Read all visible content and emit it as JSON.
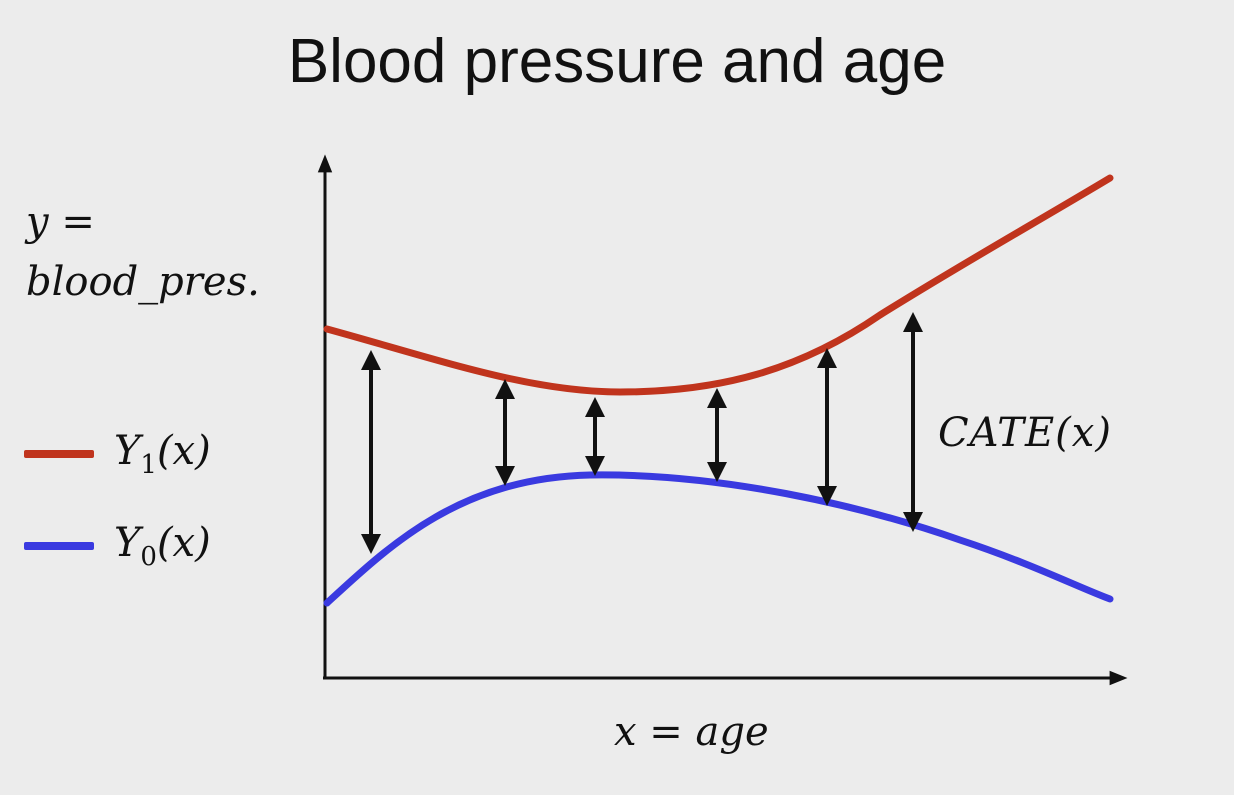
{
  "title": "Blood pressure and age",
  "y_axis": {
    "line1": "y =",
    "line2": "blood_pres."
  },
  "x_axis": {
    "label": "x = age"
  },
  "legend": [
    {
      "base": "Y",
      "sub": "1",
      "rest": "(x)",
      "color": "#c0341d"
    },
    {
      "base": "Y",
      "sub": "0",
      "rest": "(x)",
      "color": "#3a3ae0"
    }
  ],
  "annotation": "CATE(x)",
  "colors": {
    "treated": "#c0341d",
    "control": "#3a3ae0",
    "axis": "#111111"
  }
}
